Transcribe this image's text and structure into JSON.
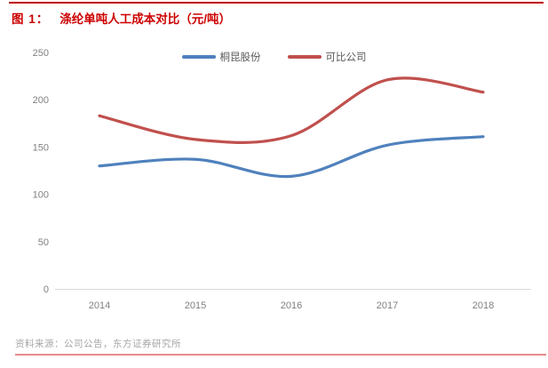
{
  "header": {
    "figure_label": "图 1：",
    "title": "涤纶单吨人工成本对比（元/吨）",
    "title_color": "#cc0000",
    "rule_color": "#c00000"
  },
  "chart_data": {
    "type": "line",
    "smooth": true,
    "title": "涤纶单吨人工成本对比（元/吨）",
    "categories": [
      "2014",
      "2015",
      "2016",
      "2017",
      "2018"
    ],
    "series": [
      {
        "name": "桐昆股份",
        "color": "#4f81bd",
        "values": [
          130,
          137,
          119,
          152,
          161
        ]
      },
      {
        "name": "可比公司",
        "color": "#c0504d",
        "values": [
          183,
          158,
          162,
          221,
          208
        ]
      }
    ],
    "xlabel": "",
    "ylabel": "",
    "ylim": [
      0,
      250
    ],
    "yticks": [
      0,
      50,
      100,
      150,
      200,
      250
    ],
    "grid": false,
    "legend_position": "top-center",
    "axis_color": "#d9d9d9",
    "tick_label_color": "#808080"
  },
  "footer": {
    "source": "资料来源：公司公告，东方证券研究所",
    "rule_color": "#e58b8b"
  }
}
